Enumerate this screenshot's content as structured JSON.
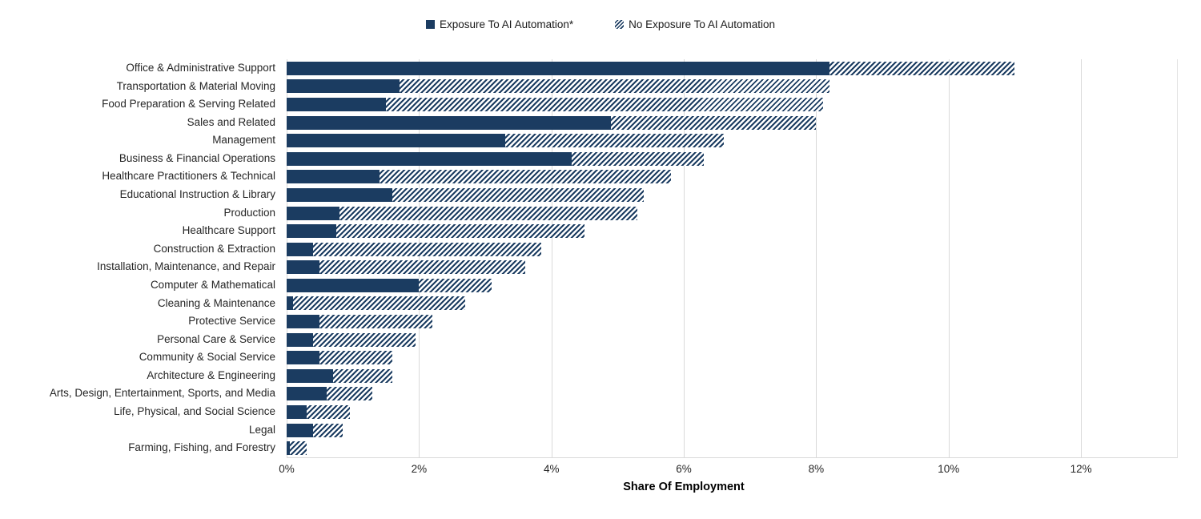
{
  "legend": {
    "exposure_label": "Exposure To AI Automation*",
    "no_exposure_label": "No Exposure To AI Automation"
  },
  "chart_data": {
    "type": "bar",
    "orientation": "horizontal",
    "stacked": true,
    "title": "",
    "xlabel": "Share Of Employment",
    "ylabel": "",
    "categories": [
      "Office & Administrative Support",
      "Transportation & Material Moving",
      "Food Preparation & Serving Related",
      "Sales and Related",
      "Management",
      "Business & Financial Operations",
      "Healthcare Practitioners & Technical",
      "Educational Instruction & Library",
      "Production",
      "Healthcare Support",
      "Construction & Extraction",
      "Installation, Maintenance, and Repair",
      "Computer & Mathematical",
      "Cleaning & Maintenance",
      "Protective Service",
      "Personal Care & Service",
      "Community & Social Service",
      "Architecture & Engineering",
      "Arts, Design, Entertainment, Sports, and Media",
      "Life, Physical, and Social Science",
      "Legal",
      "Farming, Fishing, and Forestry"
    ],
    "series": [
      {
        "name": "Exposure To AI Automation*",
        "style": "solid",
        "values": [
          8.2,
          1.7,
          1.5,
          4.9,
          3.3,
          4.3,
          1.4,
          1.6,
          0.8,
          0.75,
          0.4,
          0.5,
          2.0,
          0.1,
          0.5,
          0.4,
          0.5,
          0.7,
          0.6,
          0.3,
          0.4,
          0.05
        ]
      },
      {
        "name": "No Exposure To AI Automation",
        "style": "diagonal-hatch",
        "values": [
          2.8,
          6.5,
          6.6,
          3.1,
          3.3,
          2.0,
          4.4,
          3.8,
          4.5,
          3.75,
          3.45,
          3.1,
          1.1,
          2.6,
          1.7,
          1.55,
          1.1,
          0.9,
          0.7,
          0.65,
          0.45,
          0.25
        ]
      }
    ],
    "x_ticks": [
      "0%",
      "2%",
      "4%",
      "6%",
      "8%",
      "10%",
      "12%"
    ],
    "x_tick_values": [
      0,
      2,
      4,
      6,
      8,
      10,
      12
    ],
    "xlim": [
      0,
      13.45
    ],
    "grid": "vertical",
    "legend_position": "top-center",
    "colors": {
      "bar_navy": "#1b3c61",
      "hatch_line": "#1b3c61",
      "gridline": "#d9d9d9",
      "text": "#262626"
    }
  }
}
